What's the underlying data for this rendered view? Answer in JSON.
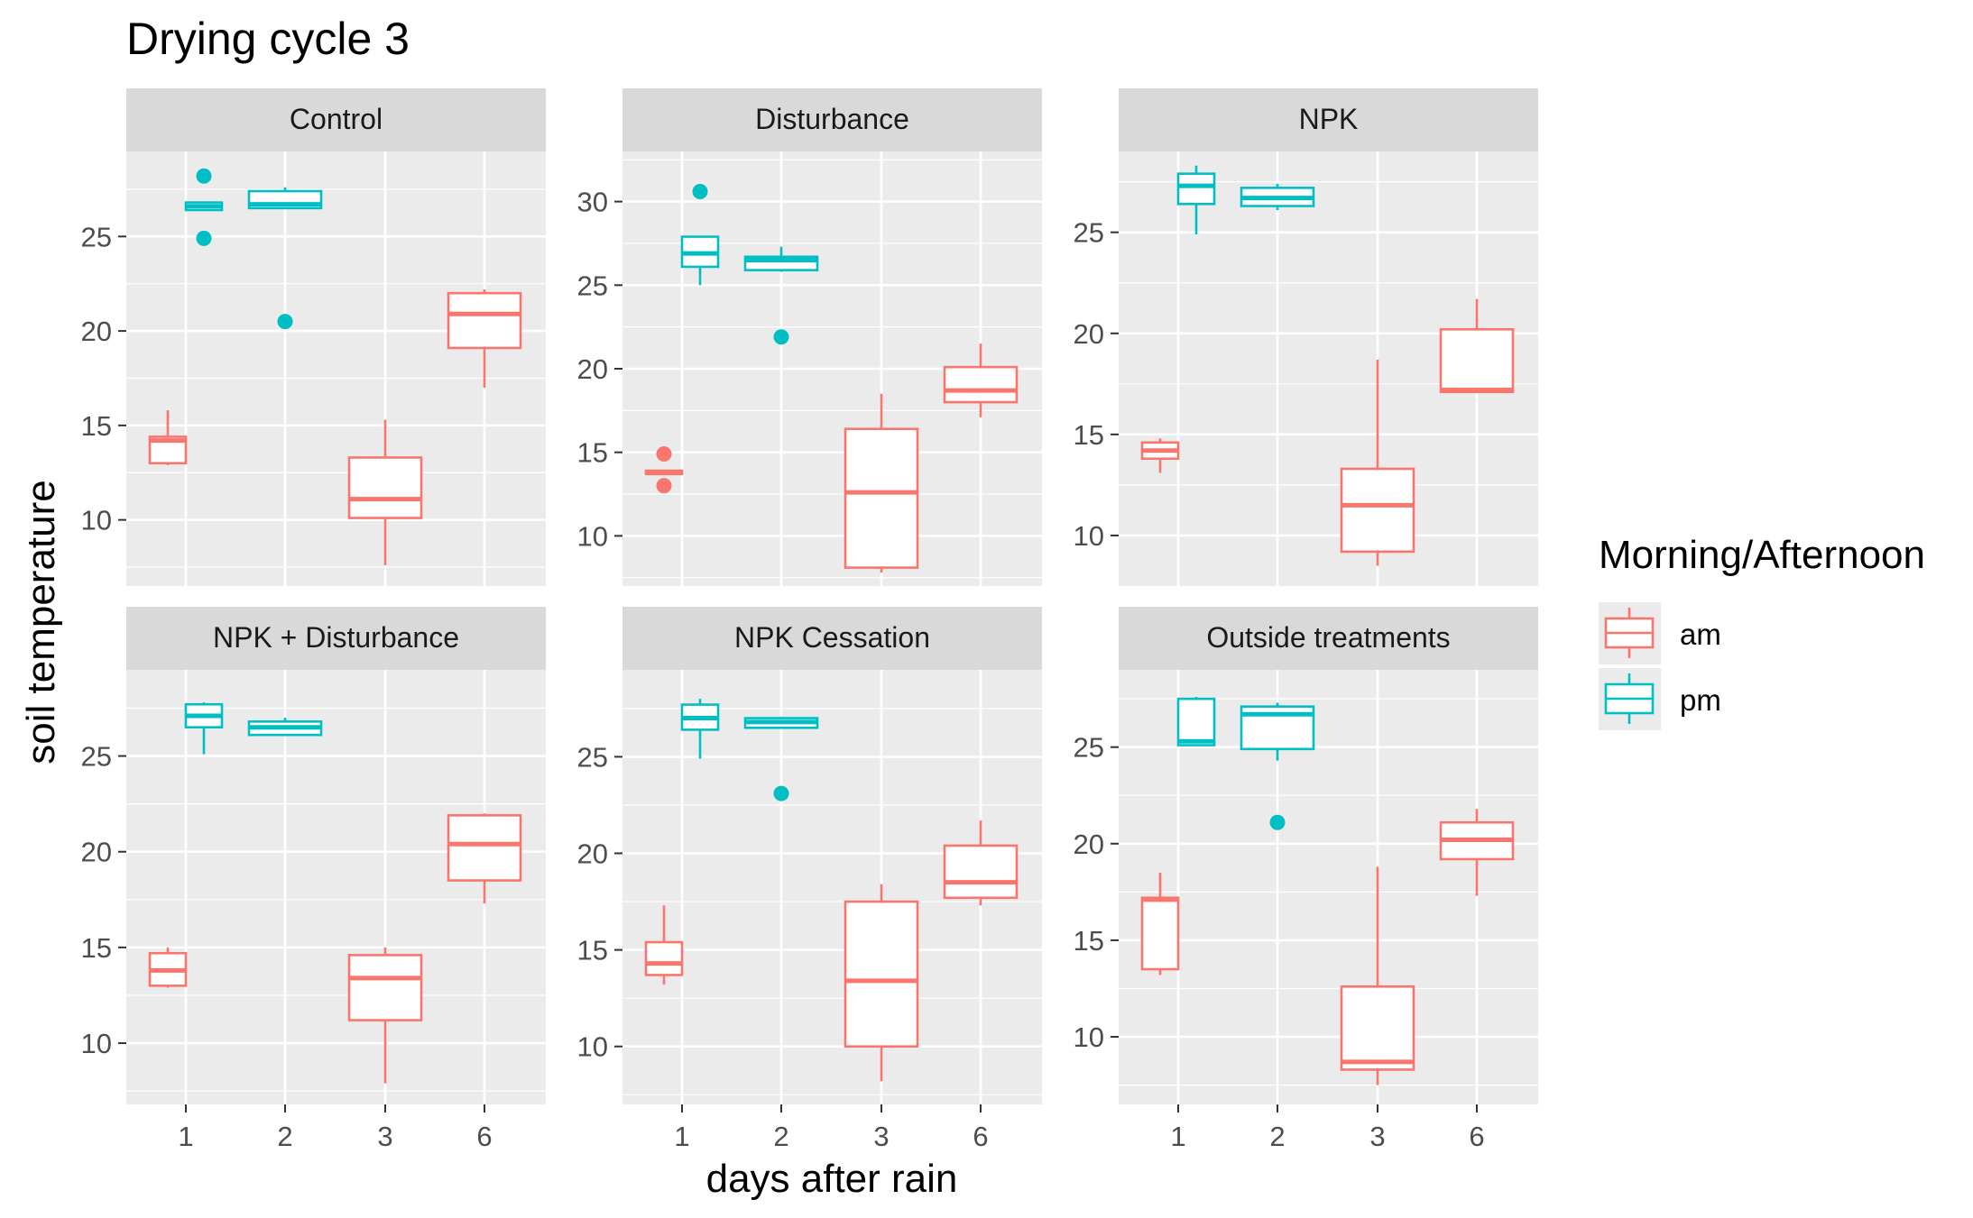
{
  "chart_data": {
    "type": "boxplot",
    "title": "Drying cycle 3",
    "xlabel": "days after rain",
    "ylabel": "soil temperature",
    "x_categories": [
      "1",
      "2",
      "3",
      "6"
    ],
    "legend": {
      "title": "Morning/Afternoon",
      "placement": "right",
      "entries": [
        {
          "name": "am",
          "color": "#F8766D"
        },
        {
          "name": "pm",
          "color": "#00BFC4"
        }
      ]
    },
    "grid": true,
    "panels": [
      {
        "name": "Control",
        "ylim": [
          6.5,
          29.5
        ],
        "yticks": [
          10,
          15,
          20,
          25
        ],
        "boxes": [
          {
            "day": "1",
            "group": "am",
            "min": 12.9,
            "q1": 13.0,
            "median": 14.2,
            "q3": 14.4,
            "max": 15.8,
            "outliers": []
          },
          {
            "day": "1",
            "group": "pm",
            "min": 26.4,
            "q1": 26.4,
            "median": 26.6,
            "q3": 26.8,
            "max": 26.8,
            "outliers": [
              28.2,
              24.9
            ]
          },
          {
            "day": "2",
            "group": "pm",
            "min": 26.5,
            "q1": 26.5,
            "median": 26.7,
            "q3": 27.4,
            "max": 27.6,
            "outliers": [
              20.5
            ]
          },
          {
            "day": "3",
            "group": "am",
            "min": 7.6,
            "q1": 10.1,
            "median": 11.1,
            "q3": 13.3,
            "max": 15.3,
            "outliers": []
          },
          {
            "day": "6",
            "group": "am",
            "min": 17.0,
            "q1": 19.1,
            "median": 20.9,
            "q3": 22.0,
            "max": 22.2,
            "outliers": []
          }
        ]
      },
      {
        "name": "Disturbance",
        "ylim": [
          7.0,
          33.0
        ],
        "yticks": [
          10,
          15,
          20,
          25,
          30
        ],
        "boxes": [
          {
            "day": "1",
            "group": "am",
            "min": 13.7,
            "q1": 13.7,
            "median": 13.8,
            "q3": 13.9,
            "max": 13.9,
            "outliers": [
              14.9,
              13.0
            ]
          },
          {
            "day": "1",
            "group": "pm",
            "min": 25.0,
            "q1": 26.1,
            "median": 26.9,
            "q3": 27.9,
            "max": 27.9,
            "outliers": [
              30.6
            ]
          },
          {
            "day": "2",
            "group": "pm",
            "min": 25.8,
            "q1": 25.9,
            "median": 26.5,
            "q3": 26.7,
            "max": 27.3,
            "outliers": [
              21.9
            ]
          },
          {
            "day": "3",
            "group": "am",
            "min": 7.8,
            "q1": 8.1,
            "median": 12.6,
            "q3": 16.4,
            "max": 18.5,
            "outliers": []
          },
          {
            "day": "6",
            "group": "am",
            "min": 17.1,
            "q1": 18.0,
            "median": 18.7,
            "q3": 20.1,
            "max": 21.5,
            "outliers": []
          }
        ]
      },
      {
        "name": "NPK",
        "ylim": [
          7.5,
          29.0
        ],
        "yticks": [
          10,
          15,
          20,
          25
        ],
        "boxes": [
          {
            "day": "1",
            "group": "am",
            "min": 13.1,
            "q1": 13.8,
            "median": 14.2,
            "q3": 14.6,
            "max": 14.8,
            "outliers": []
          },
          {
            "day": "1",
            "group": "pm",
            "min": 24.9,
            "q1": 26.4,
            "median": 27.3,
            "q3": 27.9,
            "max": 28.3,
            "outliers": []
          },
          {
            "day": "2",
            "group": "pm",
            "min": 26.1,
            "q1": 26.3,
            "median": 26.7,
            "q3": 27.2,
            "max": 27.4,
            "outliers": []
          },
          {
            "day": "3",
            "group": "am",
            "min": 8.5,
            "q1": 9.2,
            "median": 11.5,
            "q3": 13.3,
            "max": 18.7,
            "outliers": []
          },
          {
            "day": "6",
            "group": "am",
            "min": 17.1,
            "q1": 17.1,
            "median": 17.2,
            "q3": 20.2,
            "max": 21.7,
            "outliers": []
          }
        ]
      },
      {
        "name": "NPK + Disturbance",
        "ylim": [
          6.8,
          29.5
        ],
        "yticks": [
          10,
          15,
          20,
          25
        ],
        "boxes": [
          {
            "day": "1",
            "group": "am",
            "min": 12.9,
            "q1": 13.0,
            "median": 13.8,
            "q3": 14.7,
            "max": 15.0,
            "outliers": []
          },
          {
            "day": "1",
            "group": "pm",
            "min": 25.1,
            "q1": 26.5,
            "median": 27.1,
            "q3": 27.7,
            "max": 27.8,
            "outliers": []
          },
          {
            "day": "2",
            "group": "pm",
            "min": 26.1,
            "q1": 26.1,
            "median": 26.5,
            "q3": 26.8,
            "max": 27.0,
            "outliers": []
          },
          {
            "day": "3",
            "group": "am",
            "min": 7.9,
            "q1": 11.2,
            "median": 13.4,
            "q3": 14.6,
            "max": 15.0,
            "outliers": []
          },
          {
            "day": "6",
            "group": "am",
            "min": 17.3,
            "q1": 18.5,
            "median": 20.4,
            "q3": 21.9,
            "max": 22.0,
            "outliers": []
          }
        ]
      },
      {
        "name": "NPK Cessation",
        "ylim": [
          7.0,
          29.5
        ],
        "yticks": [
          10,
          15,
          20,
          25
        ],
        "boxes": [
          {
            "day": "1",
            "group": "am",
            "min": 13.2,
            "q1": 13.7,
            "median": 14.3,
            "q3": 15.4,
            "max": 17.3,
            "outliers": []
          },
          {
            "day": "1",
            "group": "pm",
            "min": 24.9,
            "q1": 26.4,
            "median": 27.0,
            "q3": 27.7,
            "max": 28.0,
            "outliers": []
          },
          {
            "day": "2",
            "group": "pm",
            "min": 26.5,
            "q1": 26.5,
            "median": 26.8,
            "q3": 27.0,
            "max": 27.0,
            "outliers": [
              23.1
            ]
          },
          {
            "day": "3",
            "group": "am",
            "min": 8.2,
            "q1": 10.0,
            "median": 13.4,
            "q3": 17.5,
            "max": 18.4,
            "outliers": []
          },
          {
            "day": "6",
            "group": "am",
            "min": 17.3,
            "q1": 17.7,
            "median": 18.5,
            "q3": 20.4,
            "max": 21.7,
            "outliers": []
          }
        ]
      },
      {
        "name": "Outside treatments",
        "ylim": [
          6.5,
          29.0
        ],
        "yticks": [
          10,
          15,
          20,
          25
        ],
        "boxes": [
          {
            "day": "1",
            "group": "am",
            "min": 13.2,
            "q1": 13.5,
            "median": 17.1,
            "q3": 17.2,
            "max": 18.5,
            "outliers": []
          },
          {
            "day": "1",
            "group": "pm",
            "min": 25.1,
            "q1": 25.1,
            "median": 25.3,
            "q3": 27.5,
            "max": 27.6,
            "outliers": []
          },
          {
            "day": "2",
            "group": "pm",
            "min": 24.3,
            "q1": 24.9,
            "median": 26.7,
            "q3": 27.1,
            "max": 27.3,
            "outliers": [
              21.1
            ]
          },
          {
            "day": "3",
            "group": "am",
            "min": 7.5,
            "q1": 8.3,
            "median": 8.7,
            "q3": 12.6,
            "max": 18.8,
            "outliers": []
          },
          {
            "day": "6",
            "group": "am",
            "min": 17.3,
            "q1": 19.2,
            "median": 20.2,
            "q3": 21.1,
            "max": 21.8,
            "outliers": []
          }
        ]
      }
    ]
  }
}
